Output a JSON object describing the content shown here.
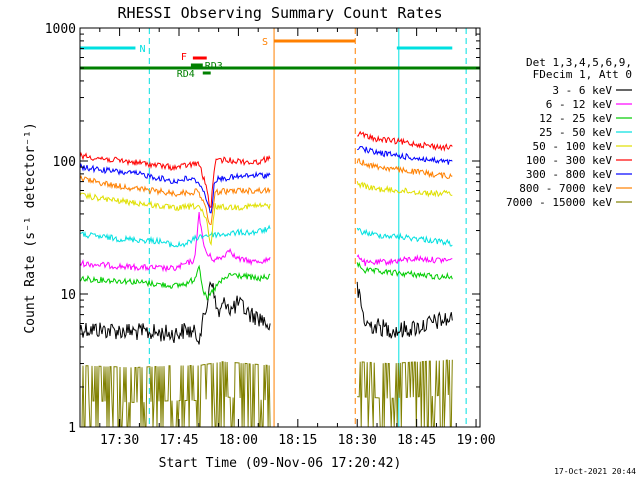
{
  "chart_data": {
    "type": "line",
    "title": "RHESSI Observing Summary Count Rates",
    "xlabel": "Start Time (09-Nov-06 17:20:42)",
    "ylabel": "Count Rate (s⁻¹ detector⁻¹)",
    "x_ticks": [
      "17:30",
      "17:45",
      "18:00",
      "18:15",
      "18:30",
      "18:45",
      "19:00"
    ],
    "x_tick_minutes": [
      10,
      25,
      40,
      55,
      70,
      85,
      100
    ],
    "xlim_minutes": [
      0,
      101
    ],
    "y_ticks": [
      "1",
      "10",
      "100",
      "1000"
    ],
    "y_scale": "log",
    "ylim": [
      1,
      1000
    ],
    "grid": false,
    "legend_position": "right",
    "legend_header": [
      "Det 1,3,4,5,6,9,",
      "FDecim 1, Att 0"
    ],
    "series": [
      {
        "name": "3 - 6 keV",
        "color": "#000000",
        "segments": [
          [
            [
              0,
              5.5
            ],
            [
              14,
              5.2
            ],
            [
              24,
              5
            ],
            [
              27,
              5.4
            ],
            [
              30,
              4.8
            ],
            [
              31,
              6
            ],
            [
              32,
              8
            ],
            [
              33,
              14
            ],
            [
              34,
              9
            ],
            [
              35,
              7
            ],
            [
              36,
              8
            ],
            [
              37,
              9
            ],
            [
              38,
              7.5
            ],
            [
              40,
              8.5
            ],
            [
              43,
              7
            ],
            [
              46,
              6.5
            ],
            [
              48,
              5.6
            ]
          ],
          [
            [
              70,
              11
            ],
            [
              72,
              6
            ],
            [
              75,
              5.7
            ],
            [
              80,
              5.3
            ],
            [
              85,
              5.6
            ],
            [
              90,
              6.2
            ],
            [
              94,
              6.5
            ]
          ]
        ]
      },
      {
        "name": "6 - 12 keV",
        "color": "#ff00ff",
        "segments": [
          [
            [
              0,
              17
            ],
            [
              12,
              16
            ],
            [
              24,
              15.5
            ],
            [
              27,
              17
            ],
            [
              29,
              18
            ],
            [
              30,
              42
            ],
            [
              31,
              25
            ],
            [
              32,
              20
            ],
            [
              34,
              18
            ],
            [
              36,
              19
            ],
            [
              38,
              22
            ],
            [
              39,
              19
            ],
            [
              41,
              18
            ],
            [
              44,
              17.5
            ],
            [
              48,
              18
            ]
          ],
          [
            [
              70,
              20
            ],
            [
              72,
              17
            ],
            [
              78,
              17.5
            ],
            [
              85,
              18.5
            ],
            [
              90,
              18
            ],
            [
              94,
              18
            ]
          ]
        ]
      },
      {
        "name": "12 - 25 keV",
        "color": "#00cc00",
        "segments": [
          [
            [
              0,
              13
            ],
            [
              12,
              12.5
            ],
            [
              24,
              11.5
            ],
            [
              27,
              12
            ],
            [
              29,
              13
            ],
            [
              30,
              17
            ],
            [
              31,
              11
            ],
            [
              32,
              9
            ],
            [
              33,
              10
            ],
            [
              35,
              12
            ],
            [
              38,
              14
            ],
            [
              42,
              13.5
            ],
            [
              45,
              13
            ],
            [
              48,
              13.5
            ]
          ],
          [
            [
              70,
              17
            ],
            [
              72,
              15
            ],
            [
              78,
              14.5
            ],
            [
              85,
              14
            ],
            [
              90,
              13.5
            ],
            [
              94,
              13.5
            ]
          ]
        ]
      },
      {
        "name": "25 - 50 keV",
        "color": "#00e0e0",
        "segments": [
          [
            [
              0,
              28
            ],
            [
              10,
              26
            ],
            [
              20,
              25
            ],
            [
              24,
              23
            ],
            [
              27,
              24
            ],
            [
              30,
              27
            ],
            [
              33,
              28
            ],
            [
              36,
              28
            ],
            [
              40,
              29
            ],
            [
              44,
              29
            ],
            [
              48,
              31
            ]
          ],
          [
            [
              70,
              30
            ],
            [
              74,
              28
            ],
            [
              80,
              27
            ],
            [
              86,
              26
            ],
            [
              90,
              25
            ],
            [
              94,
              24
            ]
          ]
        ]
      },
      {
        "name": "50 - 100 keV",
        "color": "#e0e000",
        "segments": [
          [
            [
              0,
              55
            ],
            [
              10,
              50
            ],
            [
              20,
              46
            ],
            [
              24,
              44
            ],
            [
              27,
              45
            ],
            [
              30,
              46
            ],
            [
              32,
              35
            ],
            [
              33,
              22
            ],
            [
              34,
              46
            ],
            [
              36,
              45
            ],
            [
              40,
              45
            ],
            [
              44,
              46
            ],
            [
              48,
              46
            ]
          ],
          [
            [
              70,
              68
            ],
            [
              74,
              62
            ],
            [
              80,
              60
            ],
            [
              86,
              58
            ],
            [
              90,
              57
            ],
            [
              94,
              57
            ]
          ]
        ]
      },
      {
        "name": "100 - 300 keV",
        "color": "#ff0000",
        "segments": [
          [
            [
              0,
              110
            ],
            [
              8,
              102
            ],
            [
              16,
              96
            ],
            [
              24,
              89
            ],
            [
              27,
              93
            ],
            [
              30,
              96
            ],
            [
              32,
              62
            ],
            [
              33,
              42
            ],
            [
              34,
              98
            ],
            [
              36,
              102
            ],
            [
              40,
              100
            ],
            [
              44,
              97
            ],
            [
              48,
              105
            ]
          ],
          [
            [
              70,
              162
            ],
            [
              74,
              148
            ],
            [
              80,
              140
            ],
            [
              86,
              133
            ],
            [
              90,
              128
            ],
            [
              94,
              126
            ]
          ]
        ]
      },
      {
        "name": "300 - 800 keV",
        "color": "#0000ff",
        "segments": [
          [
            [
              0,
              90
            ],
            [
              8,
              84
            ],
            [
              16,
              79
            ],
            [
              24,
              70
            ],
            [
              27,
              74
            ],
            [
              30,
              70
            ],
            [
              32,
              52
            ],
            [
              33,
              38
            ],
            [
              34,
              72
            ],
            [
              36,
              74
            ],
            [
              40,
              76
            ],
            [
              44,
              78
            ],
            [
              48,
              78
            ]
          ],
          [
            [
              70,
              128
            ],
            [
              74,
              117
            ],
            [
              80,
              110
            ],
            [
              86,
              104
            ],
            [
              90,
              100
            ],
            [
              94,
              97
            ]
          ]
        ]
      },
      {
        "name": "800 - 7000 keV",
        "color": "#ff8000",
        "segments": [
          [
            [
              0,
              74
            ],
            [
              8,
              66
            ],
            [
              16,
              61
            ],
            [
              24,
              57
            ],
            [
              27,
              58
            ],
            [
              30,
              59
            ],
            [
              32,
              42
            ],
            [
              33,
              30
            ],
            [
              34,
              58
            ],
            [
              36,
              59
            ],
            [
              40,
              60
            ],
            [
              44,
              60
            ],
            [
              48,
              60
            ]
          ],
          [
            [
              70,
              100
            ],
            [
              74,
              92
            ],
            [
              80,
              86
            ],
            [
              86,
              82
            ],
            [
              90,
              79
            ],
            [
              94,
              76
            ]
          ]
        ]
      },
      {
        "name": "7000 - 15000 keV",
        "color": "#808000",
        "segments": [
          [
            [
              0,
              2.9
            ],
            [
              14,
              2.8
            ],
            [
              24,
              2.9
            ],
            [
              30,
              2.9
            ],
            [
              36,
              3.1
            ],
            [
              42,
              3.0
            ],
            [
              48,
              2.9
            ]
          ],
          [
            [
              70,
              3.1
            ],
            [
              78,
              3.0
            ],
            [
              86,
              3.1
            ],
            [
              94,
              3.2
            ]
          ]
        ]
      }
    ],
    "gaps_minutes": [
      [
        48.5,
        69.5
      ]
    ],
    "attenuator_state_bars": [
      {
        "label": "N",
        "color": "#00e0e0",
        "segments": [
          [
            0,
            14
          ],
          [
            80,
            94
          ]
        ]
      },
      {
        "label": "F",
        "color": "#ff0000",
        "segments": [
          [
            28.5,
            32
          ]
        ]
      },
      {
        "label": "S",
        "color": "#ff8000",
        "segments": [
          [
            49,
            69.5
          ]
        ]
      },
      {
        "label": "RD3",
        "color": "#008000",
        "segments": [
          [
            28,
            31
          ]
        ]
      },
      {
        "label": "RD4",
        "color": "#008000",
        "segments": [
          [
            31,
            33
          ]
        ]
      }
    ],
    "saa_level_line": {
      "color": "#008000",
      "value": 500
    },
    "vertical_markers": [
      {
        "minute": 0,
        "color": "#00e0e0",
        "style": "dashed"
      },
      {
        "minute": 17.5,
        "color": "#00e0e0",
        "style": "dashed"
      },
      {
        "minute": 49,
        "color": "#ff8000",
        "style": "solid"
      },
      {
        "minute": 69.5,
        "color": "#ff8000",
        "style": "dashed"
      },
      {
        "minute": 80.5,
        "color": "#00e0e0",
        "style": "solid"
      },
      {
        "minute": 97.5,
        "color": "#00e0e0",
        "style": "dashed"
      }
    ],
    "datestamp": "17-Oct-2021 20:44"
  }
}
